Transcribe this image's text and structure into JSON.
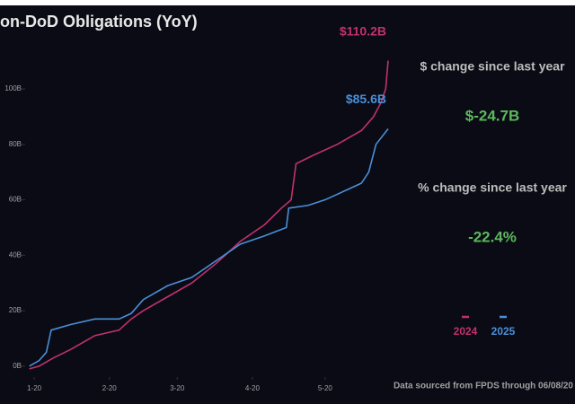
{
  "chart_data": {
    "type": "line",
    "title": "on-DoD Obligations (YoY)",
    "note": "Data sourced from FPDS through 06/08/20",
    "xlim": [
      17,
      166
    ],
    "xticks": [
      {
        "value": 20,
        "label": "1-20"
      },
      {
        "value": 51,
        "label": "2-20"
      },
      {
        "value": 79,
        "label": "3-20"
      },
      {
        "value": 110,
        "label": "4-20"
      },
      {
        "value": 140,
        "label": "5-20"
      }
    ],
    "ylim": [
      -2,
      112
    ],
    "yticks": [
      {
        "value": 0,
        "label": "0B"
      },
      {
        "value": 20,
        "label": "20B"
      },
      {
        "value": 40,
        "label": "40B"
      },
      {
        "value": 60,
        "label": "60B"
      },
      {
        "value": 80,
        "label": "80B"
      },
      {
        "value": 100,
        "label": "100B"
      }
    ],
    "series": [
      {
        "name": "2024",
        "color": "#c2316f",
        "x": [
          18,
          22,
          28,
          35,
          45,
          55,
          60,
          65,
          75,
          85,
          95,
          105,
          115,
          122,
          126,
          128,
          135,
          145,
          155,
          160,
          163,
          165,
          166
        ],
        "values": [
          -1,
          0,
          3,
          6,
          11,
          13,
          17,
          20,
          25,
          30,
          37,
          45,
          51,
          57,
          60,
          73,
          76,
          80,
          85,
          90,
          95,
          100,
          110.2
        ],
        "value_labels": [
          null,
          null,
          null,
          null,
          null,
          null,
          null,
          null,
          null,
          null,
          null,
          null,
          null,
          null,
          null,
          null,
          null,
          null,
          null,
          null,
          null,
          null,
          "$110.2B"
        ]
      },
      {
        "name": "2025",
        "color": "#4a90d9",
        "x": [
          18,
          22,
          25,
          27,
          35,
          45,
          55,
          60,
          65,
          75,
          85,
          95,
          105,
          115,
          124,
          125,
          133,
          140,
          150,
          155,
          158,
          161,
          166
        ],
        "values": [
          0,
          2,
          5,
          13,
          15,
          17,
          17,
          19,
          24,
          29,
          32,
          38,
          44,
          47,
          50,
          57,
          58,
          60,
          64,
          66,
          70,
          80,
          85.6
        ],
        "value_labels": [
          null,
          null,
          null,
          null,
          null,
          null,
          null,
          null,
          null,
          null,
          null,
          null,
          null,
          null,
          null,
          null,
          null,
          null,
          null,
          null,
          null,
          null,
          "$85.6B"
        ]
      }
    ]
  },
  "panel": {
    "dollar_label": "$ change since last year",
    "dollar_value": "$-24.7B",
    "percent_label": "% change since last year",
    "percent_value": "-22.4%"
  }
}
